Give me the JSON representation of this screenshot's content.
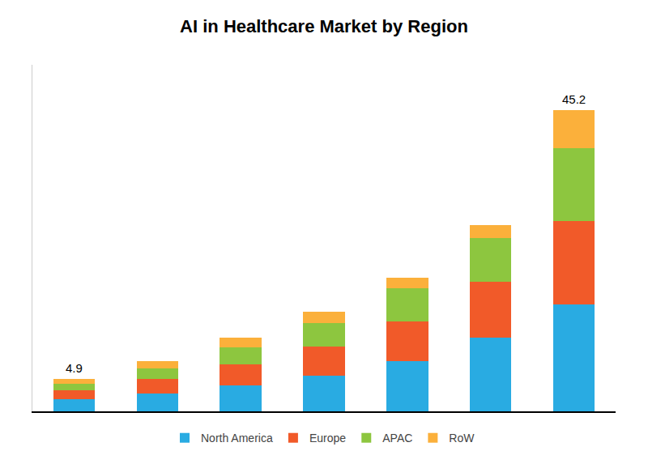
{
  "chart_data": {
    "type": "bar",
    "title": "AI in Healthcare Market by Region",
    "categories": [
      null,
      null,
      null,
      null,
      null,
      null,
      null
    ],
    "series": [
      {
        "name": "North America",
        "color": "#29ABE2",
        "values": [
          1.8,
          2.7,
          3.9,
          5.4,
          7.5,
          11.0,
          16.0
        ]
      },
      {
        "name": "Europe",
        "color": "#F15A29",
        "values": [
          1.3,
          2.1,
          3.2,
          4.3,
          6.0,
          8.5,
          12.5
        ]
      },
      {
        "name": "APAC",
        "color": "#8DC63F",
        "values": [
          1.0,
          1.6,
          2.5,
          3.5,
          5.0,
          6.5,
          11.0
        ]
      },
      {
        "name": "RoW",
        "color": "#FBB03B",
        "values": [
          0.8,
          1.1,
          1.4,
          1.8,
          1.5,
          2.0,
          5.7
        ]
      }
    ],
    "stacked": true,
    "ylim": [
      0,
      52
    ],
    "tick_labels": false,
    "grid": false,
    "legend": "bottom",
    "annotations": [
      {
        "text": "4.9",
        "x": 0,
        "y": 4.9
      },
      {
        "text": "45.2",
        "x": 6,
        "y": 45.2
      }
    ]
  }
}
